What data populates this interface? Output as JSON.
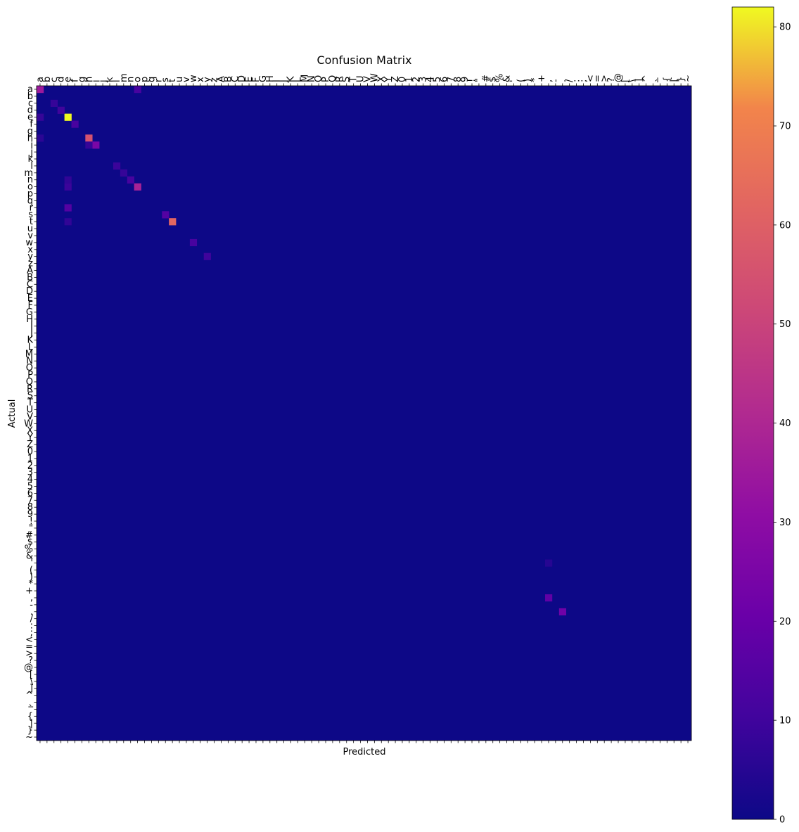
{
  "chart_data": {
    "type": "heatmap",
    "title": "Confusion Matrix",
    "xlabel": "Predicted",
    "ylabel": "Actual",
    "colormap": "plasma",
    "vmin": 0,
    "vmax": 82,
    "colorbar_ticks": [
      0,
      10,
      20,
      30,
      40,
      50,
      60,
      70,
      80
    ],
    "labels": [
      "a",
      "b",
      "c",
      "d",
      "e",
      "f",
      "g",
      "h",
      "i",
      "j",
      "k",
      "l",
      "m",
      "n",
      "o",
      "p",
      "q",
      "r",
      "s",
      "t",
      "u",
      "v",
      "w",
      "x",
      "y",
      "z",
      "A",
      "B",
      "C",
      "D",
      "E",
      "F",
      "G",
      "H",
      "I",
      "J",
      "K",
      "L",
      "M",
      "N",
      "O",
      "P",
      "Q",
      "R",
      "S",
      "T",
      "U",
      "V",
      "W",
      "X",
      "Y",
      "Z",
      "0",
      "1",
      "2",
      "3",
      "4",
      "5",
      "6",
      "7",
      "8",
      "9",
      "!",
      "\"",
      "#",
      "$",
      "%",
      "&",
      "'",
      "(",
      ")",
      "*",
      "+",
      ",",
      "-",
      ".",
      "/",
      ":",
      ";",
      "<",
      "=",
      ">",
      "?",
      "@",
      "[",
      "\\",
      "]",
      "^",
      "_",
      "`",
      "{",
      "|",
      "}",
      "~"
    ],
    "notable_cells": [
      {
        "actual": "e",
        "predicted": "e",
        "value": 82
      },
      {
        "actual": "t",
        "predicted": "t",
        "value": 62
      },
      {
        "actual": "h",
        "predicted": "h",
        "value": 55
      },
      {
        "actual": "o",
        "predicted": "o",
        "value": 38
      },
      {
        "actual": "a",
        "predicted": "a",
        "value": 35
      },
      {
        "actual": "i",
        "predicted": "i",
        "value": 25
      },
      {
        "actual": ".",
        "predicted": ".",
        "value": 22
      },
      {
        "actual": ",",
        "predicted": ",",
        "value": 18
      },
      {
        "actual": "s",
        "predicted": "s",
        "value": 15
      },
      {
        "actual": "r",
        "predicted": "e",
        "value": 15
      },
      {
        "actual": "n",
        "predicted": "n",
        "value": 12
      },
      {
        "actual": "f",
        "predicted": "f",
        "value": 12
      },
      {
        "actual": "w",
        "predicted": "w",
        "value": 12
      },
      {
        "actual": "y",
        "predicted": "y",
        "value": 10
      },
      {
        "actual": "d",
        "predicted": "d",
        "value": 10
      },
      {
        "actual": "l",
        "predicted": "l",
        "value": 9
      },
      {
        "actual": "c",
        "predicted": "c",
        "value": 8
      },
      {
        "actual": "m",
        "predicted": "m",
        "value": 8
      },
      {
        "actual": "a",
        "predicted": "o",
        "value": 12
      },
      {
        "actual": "o",
        "predicted": "e",
        "value": 9
      },
      {
        "actual": "e",
        "predicted": "a",
        "value": 8
      },
      {
        "actual": "i",
        "predicted": "h",
        "value": 8
      },
      {
        "actual": "n",
        "predicted": "e",
        "value": 7
      },
      {
        "actual": "t",
        "predicted": "e",
        "value": 7
      },
      {
        "actual": "h",
        "predicted": "a",
        "value": 6
      },
      {
        "actual": "'",
        "predicted": ",",
        "value": 5
      }
    ],
    "grid": false
  }
}
